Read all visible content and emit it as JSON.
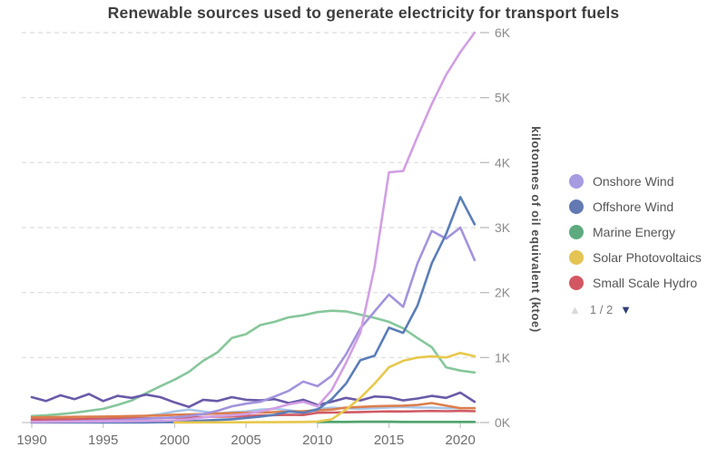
{
  "title": "Renewable sources used to generate electricity for transport fuels",
  "y_axis": {
    "title": "kilotonnes of oil equivalent (ktoe)",
    "ticks": [
      "0K",
      "1K",
      "2K",
      "3K",
      "4K",
      "5K",
      "6K"
    ]
  },
  "x_axis": {
    "ticks": [
      "1990",
      "1995",
      "2000",
      "2005",
      "2010",
      "2015",
      "2020"
    ]
  },
  "legend": {
    "items": [
      {
        "label": "Onshore Wind",
        "color": "#a79ce1"
      },
      {
        "label": "Offshore Wind",
        "color": "#6379b3"
      },
      {
        "label": "Marine Energy",
        "color": "#5eab80"
      },
      {
        "label": "Solar Photovoltaics",
        "color": "#e5c454"
      },
      {
        "label": "Small Scale Hydro",
        "color": "#d35763"
      }
    ],
    "pagination": {
      "text": "1 / 2",
      "up_icon": "triangle-up",
      "down_icon": "triangle-down",
      "up_enabled": false,
      "down_enabled": true
    }
  },
  "chart_data": {
    "type": "line",
    "title": "Renewable sources used to generate electricity for transport fuels",
    "ylabel": "kilotonnes of oil equivalent (ktoe)",
    "xlim": [
      1990,
      2021
    ],
    "ylim": [
      0,
      6000
    ],
    "grid": "horizontal-dashed",
    "legend_position": "right",
    "legend_pages": "1 / 2",
    "x": [
      1990,
      1991,
      1992,
      1993,
      1994,
      1995,
      1996,
      1997,
      1998,
      1999,
      2000,
      2001,
      2002,
      2003,
      2004,
      2005,
      2006,
      2007,
      2008,
      2009,
      2010,
      2011,
      2012,
      2013,
      2014,
      2015,
      2016,
      2017,
      2018,
      2019,
      2020,
      2021
    ],
    "series": [
      {
        "name": "Unlabeled (light green, legend page 2)",
        "color": "#86c79b",
        "values": [
          100,
          110,
          130,
          150,
          180,
          210,
          270,
          340,
          450,
          560,
          660,
          780,
          950,
          1080,
          1300,
          1360,
          1500,
          1550,
          1620,
          1650,
          1700,
          1720,
          1710,
          1660,
          1610,
          1550,
          1450,
          1300,
          1160,
          850,
          800,
          770
        ]
      },
      {
        "name": "Unlabeled (light blue, legend page 2)",
        "color": "#a9c6e8",
        "values": [
          20,
          25,
          30,
          40,
          50,
          60,
          70,
          85,
          100,
          130,
          170,
          200,
          170,
          140,
          160,
          170,
          200,
          210,
          190,
          160,
          210,
          230,
          220,
          210,
          220,
          230,
          240,
          230,
          230,
          220,
          220,
          220
        ]
      },
      {
        "name": "Small Scale Hydro",
        "color": "#d05b65",
        "values": [
          45,
          48,
          52,
          50,
          58,
          55,
          60,
          64,
          66,
          70,
          78,
          76,
          84,
          90,
          94,
          100,
          108,
          114,
          120,
          116,
          150,
          154,
          158,
          162,
          168,
          172,
          170,
          174,
          178,
          174,
          178,
          174
        ]
      },
      {
        "name": "Unlabeled (orange, legend page 2)",
        "color": "#dc7f4c",
        "values": [
          80,
          82,
          85,
          88,
          90,
          92,
          95,
          100,
          105,
          110,
          120,
          125,
          130,
          140,
          145,
          150,
          155,
          160,
          170,
          175,
          190,
          200,
          230,
          240,
          250,
          255,
          260,
          270,
          300,
          260,
          220,
          220
        ]
      },
      {
        "name": "Unlabeled (dark purple, legend page 2)",
        "color": "#6a5aa8",
        "values": [
          390,
          330,
          420,
          360,
          440,
          330,
          410,
          380,
          430,
          390,
          310,
          240,
          350,
          330,
          390,
          350,
          340,
          360,
          300,
          350,
          270,
          320,
          380,
          340,
          400,
          390,
          340,
          370,
          410,
          380,
          460,
          320
        ]
      },
      {
        "name": "Marine Energy",
        "color": "#4fa56d",
        "values": [
          null,
          null,
          null,
          null,
          null,
          null,
          null,
          null,
          null,
          null,
          null,
          null,
          null,
          null,
          null,
          null,
          null,
          null,
          null,
          null,
          8,
          10,
          10,
          12,
          12,
          12,
          10,
          10,
          10,
          10,
          10,
          10
        ]
      },
      {
        "name": "Onshore Wind",
        "color": "#a393dd",
        "values": [
          10,
          12,
          15,
          20,
          25,
          30,
          35,
          45,
          60,
          70,
          80,
          100,
          130,
          180,
          250,
          290,
          320,
          400,
          490,
          630,
          560,
          720,
          1050,
          1450,
          1710,
          1970,
          1780,
          2450,
          2950,
          2830,
          3000,
          2500
        ]
      },
      {
        "name": "Offshore Wind",
        "color": "#5b7db8",
        "values": [
          0,
          0,
          0,
          0,
          0,
          0,
          0,
          0,
          0,
          5,
          5,
          18,
          30,
          40,
          50,
          70,
          90,
          120,
          170,
          150,
          200,
          360,
          600,
          960,
          1030,
          1460,
          1380,
          1800,
          2450,
          2900,
          3470,
          3050
        ]
      },
      {
        "name": "Solar Photovoltaics",
        "color": "#e8c84d",
        "values": [
          null,
          null,
          null,
          null,
          null,
          null,
          null,
          null,
          null,
          null,
          2,
          2,
          3,
          3,
          4,
          4,
          5,
          6,
          8,
          10,
          15,
          50,
          200,
          380,
          600,
          850,
          950,
          1000,
          1020,
          1000,
          1070,
          1020
        ]
      },
      {
        "name": "Unlabeled (violet, legend page 2)",
        "color": "#d29fe3",
        "values": [
          10,
          10,
          12,
          14,
          16,
          18,
          20,
          22,
          25,
          28,
          35,
          50,
          80,
          100,
          110,
          130,
          170,
          220,
          280,
          320,
          250,
          500,
          920,
          1380,
          2400,
          3850,
          3870,
          4400,
          4900,
          5350,
          5700,
          6000
        ]
      }
    ]
  }
}
